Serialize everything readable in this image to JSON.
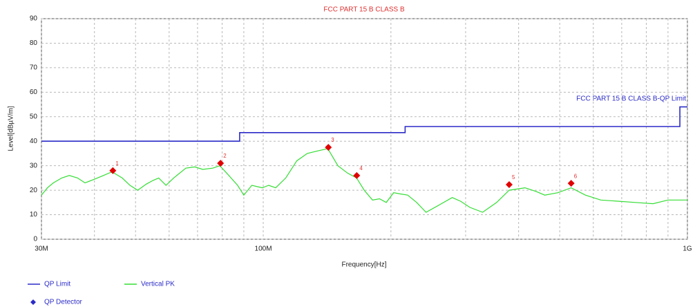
{
  "chart_data": {
    "type": "line",
    "title": "FCC PART 15 B CLASS B",
    "xlabel": "Frequency[Hz]",
    "ylabel": "Level[dBµV/m]",
    "annotation": "FCC PART 15 B CLASS B-QP Limit",
    "xscale": "log",
    "xlim": [
      30000000,
      1000000000
    ],
    "ylim": [
      0,
      90
    ],
    "xticks": [
      {
        "value": 30000000,
        "label": "30M"
      },
      {
        "value": 100000000,
        "label": "100M"
      },
      {
        "value": 1000000000,
        "label": "1G"
      }
    ],
    "xminor": [
      40000000,
      50000000,
      60000000,
      70000000,
      80000000,
      90000000,
      200000000,
      300000000,
      400000000,
      500000000,
      600000000,
      700000000,
      800000000,
      900000000
    ],
    "yticks": [
      0,
      10,
      20,
      30,
      40,
      50,
      60,
      70,
      80,
      90
    ],
    "grid": true,
    "series": [
      {
        "name": "QP Limit",
        "color": "#2b2bc8",
        "x": [
          30000000,
          88000000,
          88000000,
          216000000,
          216000000,
          960000000,
          960000000,
          1000000000
        ],
        "values": [
          40,
          40,
          43.5,
          43.5,
          46,
          46,
          54,
          54
        ]
      },
      {
        "name": "Vertical PK",
        "color": "#33dd33",
        "x": [
          30000000,
          31000000,
          32000000,
          33500000,
          34900000,
          36500000,
          38000000,
          40000000,
          42000000,
          44000000,
          46500000,
          48500000,
          50600000,
          53000000,
          55000000,
          56700000,
          59000000,
          61500000,
          65700000,
          69000000,
          72000000,
          76000000,
          79000000,
          82000000,
          87000000,
          90000000,
          94000000,
          99500000,
          103000000,
          107000000,
          113000000,
          120000000,
          127000000,
          134000000,
          142000000,
          150000000,
          158000000,
          166000000,
          173000000,
          181000000,
          188000000,
          195000000,
          203000000,
          210000000,
          219000000,
          230000000,
          242000000,
          260000000,
          279000000,
          292000000,
          307000000,
          329000000,
          355000000,
          380000000,
          414000000,
          440000000,
          461000000,
          495000000,
          532000000,
          575000000,
          625000000,
          690000000,
          754000000,
          830000000,
          900000000,
          1000000000
        ],
        "values": [
          18,
          21,
          23,
          25,
          26,
          25,
          23,
          24.5,
          26,
          27.5,
          25,
          22,
          20,
          22.5,
          24,
          25,
          22,
          25,
          29,
          29.5,
          28.5,
          29,
          30,
          27,
          22,
          18,
          22,
          21,
          22,
          21,
          25,
          32,
          35,
          36,
          37,
          30,
          27,
          25,
          20,
          16,
          16.5,
          15,
          19,
          18.5,
          18,
          15,
          11,
          14,
          17,
          15.5,
          13,
          11,
          15,
          20,
          21,
          19.5,
          18,
          19,
          21,
          18,
          16,
          15.5,
          15,
          14.5,
          16,
          16
        ]
      },
      {
        "name": "QP Detector",
        "type": "scatter",
        "color": "#e00000",
        "legend_color": "#2b2bc8",
        "x": [
          44200000,
          79300000,
          142400000,
          166100000,
          380000000,
          532000000
        ],
        "values": [
          28,
          31,
          37.5,
          26,
          22.3,
          22.8
        ],
        "labels": [
          "1",
          "2",
          "3",
          "4",
          "5",
          "6"
        ]
      }
    ]
  }
}
